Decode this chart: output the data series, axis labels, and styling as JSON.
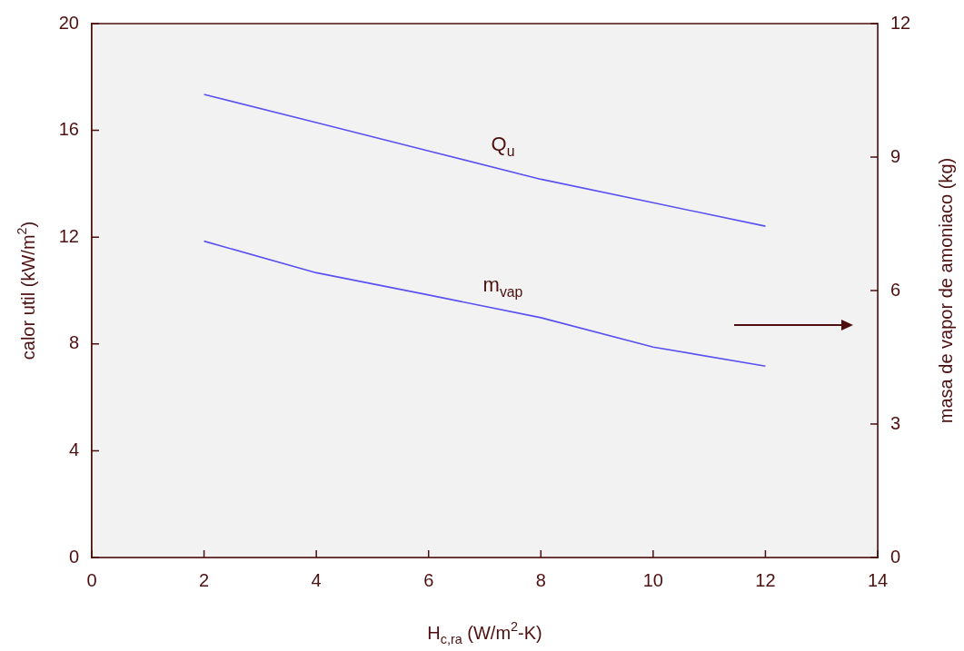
{
  "chart_data": {
    "type": "line",
    "xlabel": "H$_{c,ra}$ (W/m$^{2}$-K)",
    "ylabel": "calor util (kW/m$^{2}$)",
    "y2label": "masa de vapor de amoniaco (kg)",
    "x": [
      2,
      4,
      6,
      8,
      10,
      12
    ],
    "series": [
      {
        "name": "Q$_{u}$",
        "color": "#5b50f0",
        "values": [
          17.35,
          16.29,
          15.23,
          14.17,
          13.29,
          12.41
        ]
      },
      {
        "name": "m$_{vap}$",
        "color": "#5b50f0",
        "axis": "y2",
        "values": [
          7.11,
          6.4,
          5.9,
          5.39,
          4.73,
          4.3
        ]
      }
    ],
    "xlim": [
      0,
      14
    ],
    "xticks": [
      0,
      2,
      4,
      6,
      8,
      10,
      12,
      14
    ],
    "ylim": [
      0,
      20
    ],
    "yticks": [
      0,
      4,
      8,
      12,
      16,
      20
    ],
    "y2lim": [
      0,
      12
    ],
    "y2ticks": [
      0,
      3,
      6,
      9,
      12
    ],
    "grid": false,
    "legend": false,
    "marker": "none",
    "line_style": "solid"
  }
}
